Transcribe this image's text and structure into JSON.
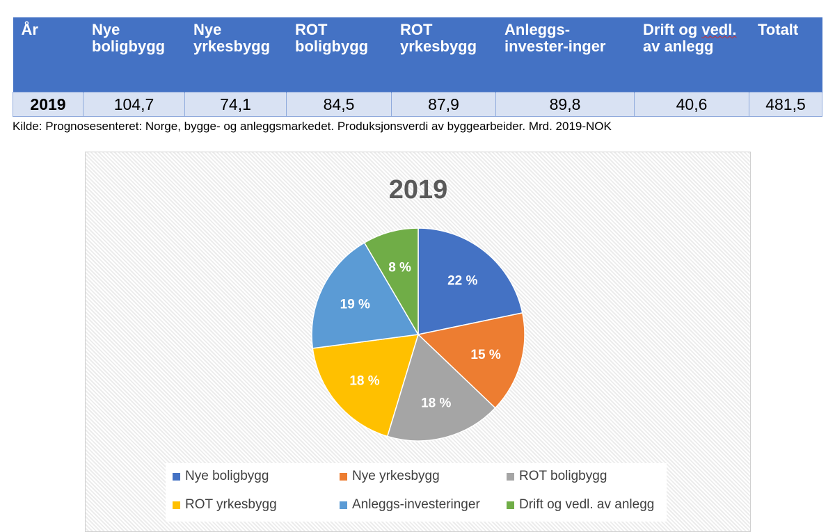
{
  "table": {
    "headers": [
      "År",
      "Nye boligbygg",
      "Nye yrkesbygg",
      "ROT boligbygg",
      "ROT yrkesbygg",
      "Anleggs-invester-inger",
      "Drift og vedl. av anlegg",
      "Totalt"
    ],
    "row": [
      "2019",
      "104,7",
      "74,1",
      "84,5",
      "87,9",
      "89,8",
      "40,6",
      "481,5"
    ]
  },
  "source_note": "Kilde: Prognosesenteret: Norge, bygge- og anleggsmarkedet. Produksjonsverdi av byggearbeider. Mrd. 2019-NOK",
  "chart_data": {
    "type": "pie",
    "title": "2019",
    "categories": [
      "Nye boligbygg",
      "Nye yrkesbygg",
      "ROT boligbygg",
      "ROT yrkesbygg",
      "Anleggs-investeringer",
      "Drift og vedl. av anlegg"
    ],
    "values": [
      104.7,
      74.1,
      84.5,
      87.9,
      89.8,
      40.6
    ],
    "labels": [
      "22 %",
      "15 %",
      "18 %",
      "18 %",
      "19 %",
      "8 %"
    ],
    "colors": [
      "#4472c4",
      "#ed7d31",
      "#a5a5a5",
      "#ffc000",
      "#5b9bd5",
      "#70ad47"
    ],
    "legend_position": "bottom"
  }
}
